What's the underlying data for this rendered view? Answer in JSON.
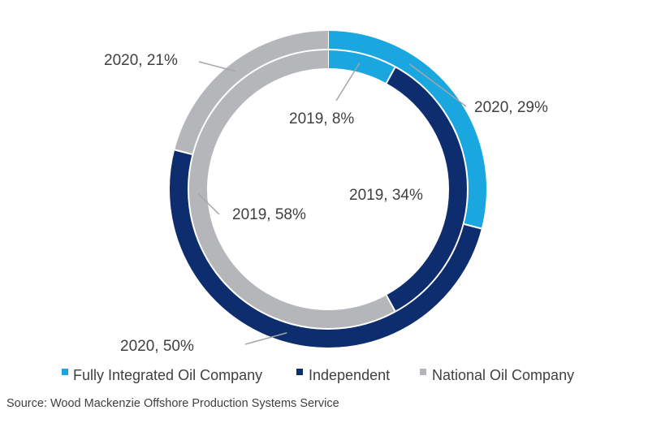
{
  "chart_data": {
    "type": "donut",
    "title": "",
    "rings": [
      {
        "name": "2020",
        "position": "outer",
        "slices": [
          {
            "category": "Fully Integrated Oil Company",
            "value": 29,
            "label": "2020, 29%"
          },
          {
            "category": "Independent",
            "value": 50,
            "label": "2020, 50%"
          },
          {
            "category": "National Oil Company",
            "value": 21,
            "label": "2020, 21%"
          }
        ]
      },
      {
        "name": "2019",
        "position": "inner",
        "slices": [
          {
            "category": "Fully Integrated Oil Company",
            "value": 8,
            "label": "2019, 8%"
          },
          {
            "category": "Independent",
            "value": 34,
            "label": "2019, 34%"
          },
          {
            "category": "National Oil Company",
            "value": 58,
            "label": "2019, 58%"
          }
        ]
      }
    ],
    "legend": {
      "placement": "bottom",
      "items": [
        {
          "label": "Fully Integrated Oil Company",
          "color": "#1aa7e0"
        },
        {
          "label": "Independent",
          "color": "#0e2d6e"
        },
        {
          "label": "National Oil Company",
          "color": "#b5b6ba"
        }
      ]
    },
    "source": "Source: Wood Mackenzie Offshore Production Systems Service"
  }
}
